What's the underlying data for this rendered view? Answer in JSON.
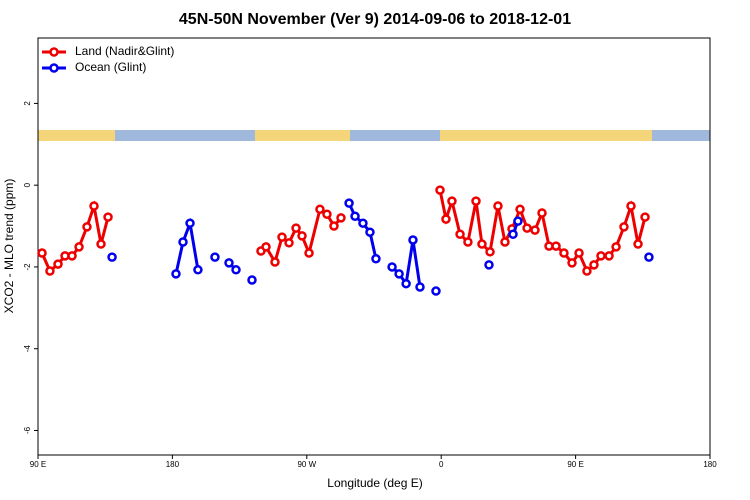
{
  "chart_data": {
    "type": "line",
    "title": "45N-50N November (Ver 9)   2014-09-06 to 2018-12-01",
    "x_label": "Longitude (deg E)",
    "y_label": "XCO2 - MLO trend (ppm)",
    "xlim": [
      90,
      540
    ],
    "xticks": [
      {
        "value": 90,
        "label": "90 E"
      },
      {
        "value": 180,
        "label": "180"
      },
      {
        "value": 270,
        "label": "90 W"
      },
      {
        "value": 360,
        "label": "0"
      },
      {
        "value": 450,
        "label": "90 E"
      },
      {
        "value": 540,
        "label": "180"
      }
    ],
    "ylim": [
      -6.6,
      3.6
    ],
    "yticks": [
      2,
      0,
      -2,
      -4,
      -6
    ],
    "legend": "top-left",
    "series": [
      {
        "name": "Land (Nadir&Glint)",
        "color": "#ee0000",
        "x": [
          92.7,
          98,
          103.4,
          108.1,
          112.8,
          117.5,
          122.8,
          127.5,
          132.2,
          136.9,
          null,
          239.3,
          242.7,
          248.7,
          253.4,
          258.1,
          262.8,
          266.8,
          271.5,
          278.8,
          283.5,
          288.2,
          292.9,
          null,
          359.2,
          363.2,
          367.2,
          372.6,
          377.9,
          383.3,
          387.3,
          392.7,
          398.0,
          402.7,
          407.4,
          412.8,
          417.5,
          422.8,
          427.5,
          432.2,
          436.9,
          442.2,
          447.6,
          452.3,
          457.6,
          462.3,
          467.0,
          472.4,
          477.1,
          482.4,
          487.1,
          491.8,
          496.5
        ],
        "values": [
          -1.66,
          -2.1,
          -1.93,
          -1.73,
          -1.73,
          -1.51,
          -1.02,
          -0.51,
          -1.44,
          -0.78,
          null,
          -1.61,
          -1.51,
          -1.88,
          -1.27,
          -1.41,
          -1.05,
          -1.24,
          -1.66,
          -0.59,
          -0.71,
          -1.0,
          -0.8,
          null,
          -0.12,
          -0.83,
          -0.39,
          -1.2,
          -1.39,
          -0.39,
          -1.44,
          -1.63,
          -0.51,
          -1.39,
          -1.07,
          -0.59,
          -1.05,
          -1.1,
          -0.68,
          -1.49,
          -1.49,
          -1.66,
          -1.9,
          -1.66,
          -2.1,
          -1.95,
          -1.73,
          -1.73,
          -1.51,
          -1.02,
          -0.51,
          -1.44,
          -0.78
        ]
      },
      {
        "name": "Ocean (Glint)",
        "color": "#0000ee",
        "x": [
          139.6,
          null,
          182.4,
          187.1,
          191.8,
          197.1,
          null,
          208.5,
          null,
          217.9,
          222.6,
          null,
          233.3,
          null,
          298.3,
          302.3,
          307.6,
          312.3,
          316.3,
          null,
          327.1,
          331.8,
          336.5,
          341.1,
          345.8,
          null,
          356.5,
          null,
          392.0,
          null,
          408.1,
          411.4,
          null,
          499.1
        ],
        "values": [
          -1.76,
          null,
          -2.17,
          -1.39,
          -0.93,
          -2.07,
          null,
          -1.76,
          null,
          -1.9,
          -2.07,
          null,
          -2.32,
          null,
          -0.44,
          -0.76,
          -0.93,
          -1.15,
          -1.8,
          null,
          -2.0,
          -2.17,
          -2.41,
          -1.34,
          -2.49,
          null,
          -2.59,
          null,
          -1.95,
          null,
          -1.2,
          -0.88,
          null,
          -1.76
        ]
      }
    ]
  }
}
